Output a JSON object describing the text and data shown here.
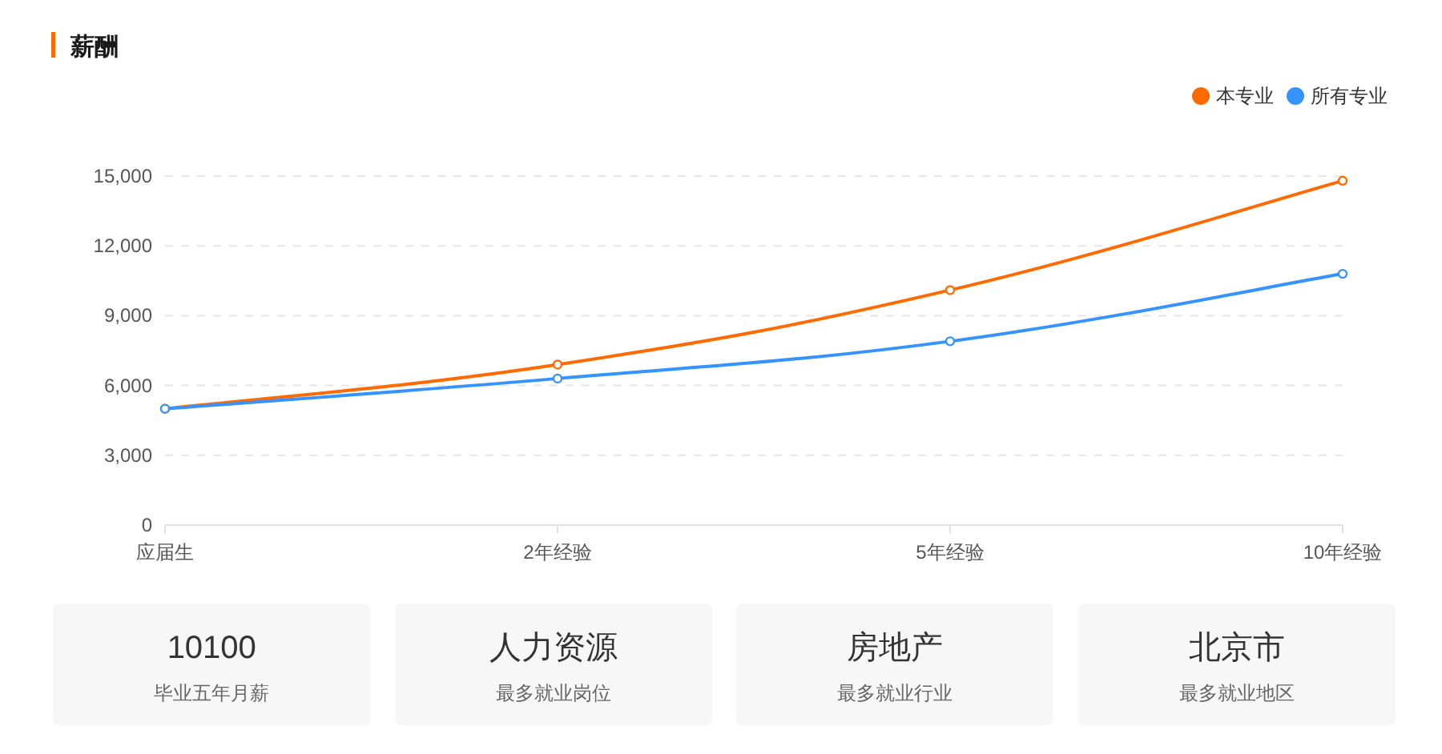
{
  "chart_data": [
    {
      "type": "line",
      "title": "薪酬",
      "categories": [
        "应届生",
        "2年经验",
        "5年经验",
        "10年经验"
      ],
      "series": [
        {
          "name": "本专业",
          "color": "#ff6a00",
          "values": [
            5000,
            6900,
            10100,
            14800
          ]
        },
        {
          "name": "所有专业",
          "color": "#3593ff",
          "values": [
            5000,
            6300,
            7900,
            10800
          ]
        }
      ],
      "ylim": [
        0,
        15000
      ],
      "yticks": [
        0,
        {
          "value": 3000,
          "label": "3,000"
        },
        {
          "value": 6000,
          "label": "6,000"
        },
        {
          "value": 9000,
          "label": "9,000"
        },
        {
          "value": 12000,
          "label": "12,000"
        },
        {
          "value": 15000,
          "label": "15,000"
        }
      ],
      "grid": "y",
      "legend": "top right",
      "marker": "circle",
      "line_style": "solid"
    },
    {
      "type": "other",
      "title": "10100",
      "subtitle": "毕业五年月薪"
    },
    {
      "type": "other",
      "title": "人力资源",
      "subtitle": "最多就业岗位"
    },
    {
      "type": "other",
      "title": "房地产",
      "subtitle": "最多就业行业"
    },
    {
      "type": "other",
      "title": "北京市",
      "subtitle": "最多就业地区"
    }
  ]
}
